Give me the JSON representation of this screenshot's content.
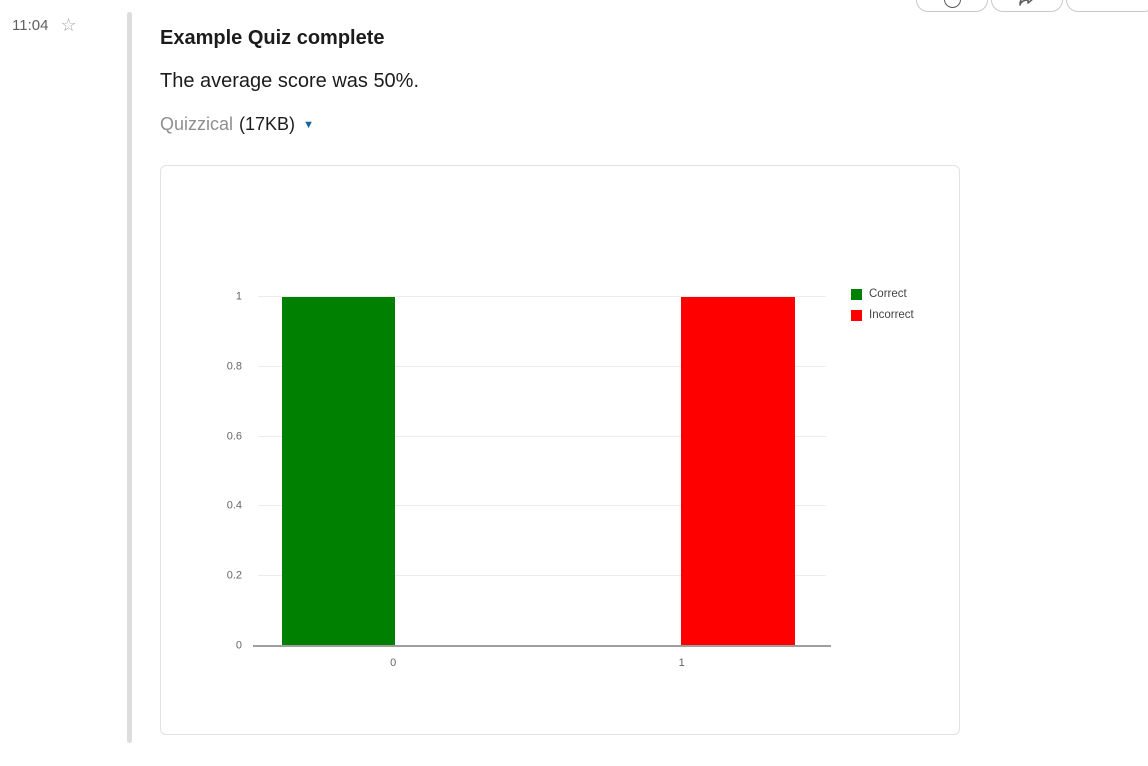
{
  "message": {
    "timestamp": "11:04",
    "attachment": {
      "title": "Example Quiz complete",
      "text": "The average score was 50%.",
      "file_name": "Quizzical",
      "file_size": "(17KB)"
    }
  },
  "icons": {
    "gutter": "star-outline-icon",
    "attachment_caret": "chevron-down-icon",
    "toolbar": [
      "emoji-reaction-icon",
      "share-message-icon",
      "more-actions-icon"
    ]
  },
  "colors": {
    "accent_blue": "#1264a3",
    "attachment_bar": "#dddddd",
    "bar_green": "#008000",
    "bar_red": "#ff0000",
    "axis_gray": "#9e9e9e"
  },
  "chart_data": {
    "type": "bar",
    "title": "",
    "xlabel": "",
    "ylabel": "",
    "categories": [
      "0",
      "1"
    ],
    "bars": [
      {
        "category": "0",
        "value": 1,
        "series": "Correct",
        "color": "#008000"
      },
      {
        "category": "1",
        "value": 1,
        "series": "Incorrect",
        "color": "#ff0000"
      }
    ],
    "legend": [
      {
        "label": "Correct",
        "color": "#008000"
      },
      {
        "label": "Incorrect",
        "color": "#ff0000"
      }
    ],
    "legend_position": "right",
    "yticks": [
      "0",
      "0.2",
      "0.4",
      "0.6",
      "0.8",
      "1"
    ],
    "ylim": [
      0,
      1
    ],
    "grid": true
  }
}
